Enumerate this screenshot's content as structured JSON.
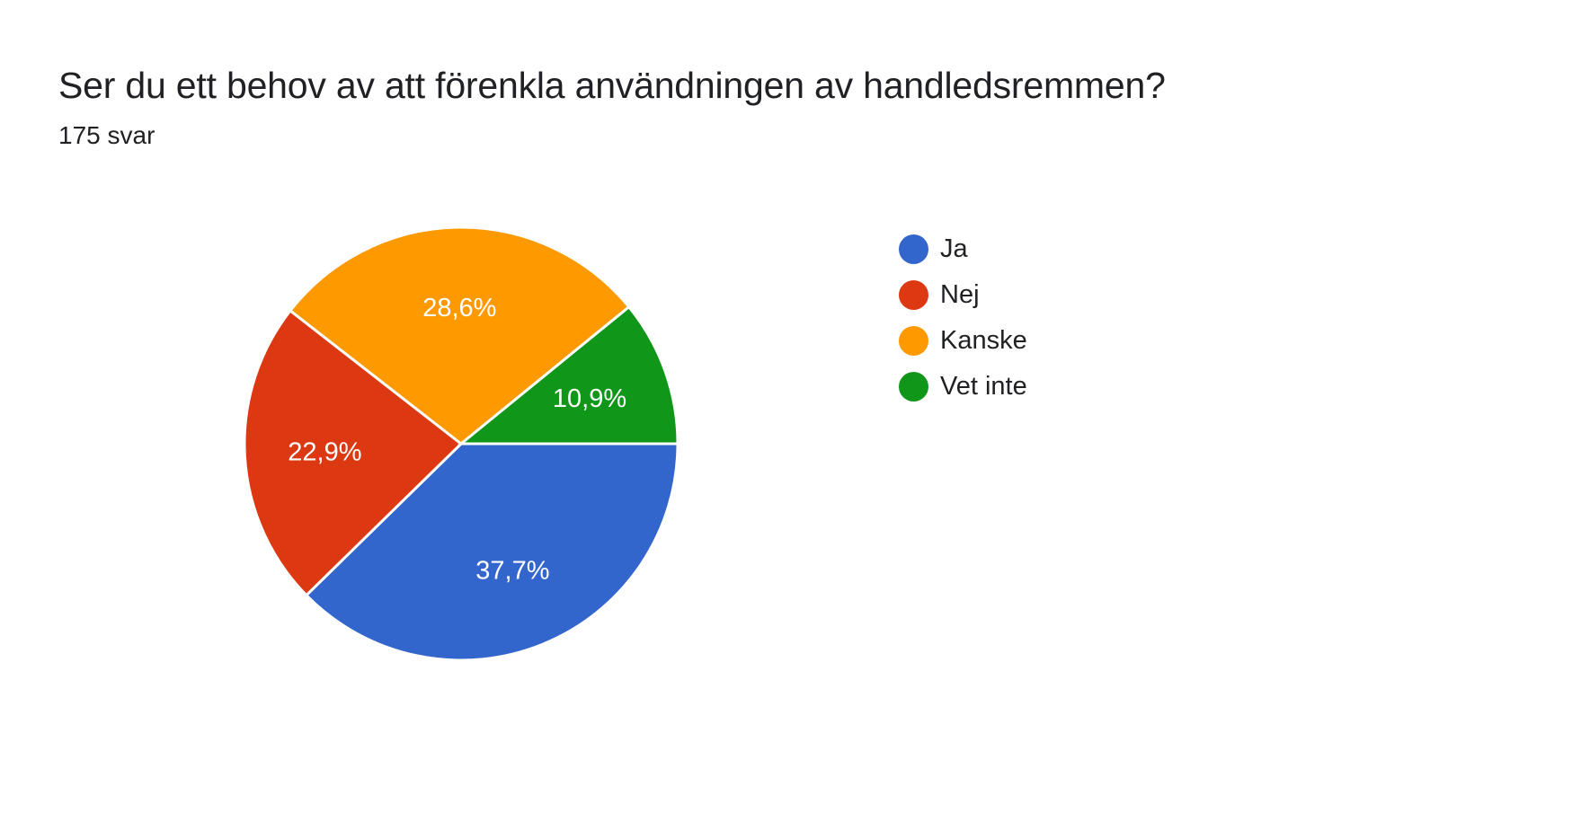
{
  "header": {
    "title": "Ser du ett behov av att förenkla användningen av handledsremmen?",
    "response_count": "175 svar"
  },
  "chart_data": {
    "type": "pie",
    "title": "Ser du ett behov av att förenkla användningen av handledsremmen?",
    "subtitle": "175 svar",
    "categories": [
      "Ja",
      "Nej",
      "Kanske",
      "Vet inte"
    ],
    "values": [
      37.7,
      22.9,
      28.6,
      10.9
    ],
    "labels": [
      "37,7%",
      "22,9%",
      "28,6%",
      "10,9%"
    ],
    "colors": [
      "#3366cc",
      "#dc3912",
      "#ff9900",
      "#109618"
    ],
    "start_angle_deg": 0,
    "direction": "clockwise",
    "legend_position": "right"
  },
  "legend": {
    "items": [
      {
        "label": "Ja",
        "color": "#3366cc"
      },
      {
        "label": "Nej",
        "color": "#dc3912"
      },
      {
        "label": "Kanske",
        "color": "#ff9900"
      },
      {
        "label": "Vet inte",
        "color": "#109618"
      }
    ]
  }
}
